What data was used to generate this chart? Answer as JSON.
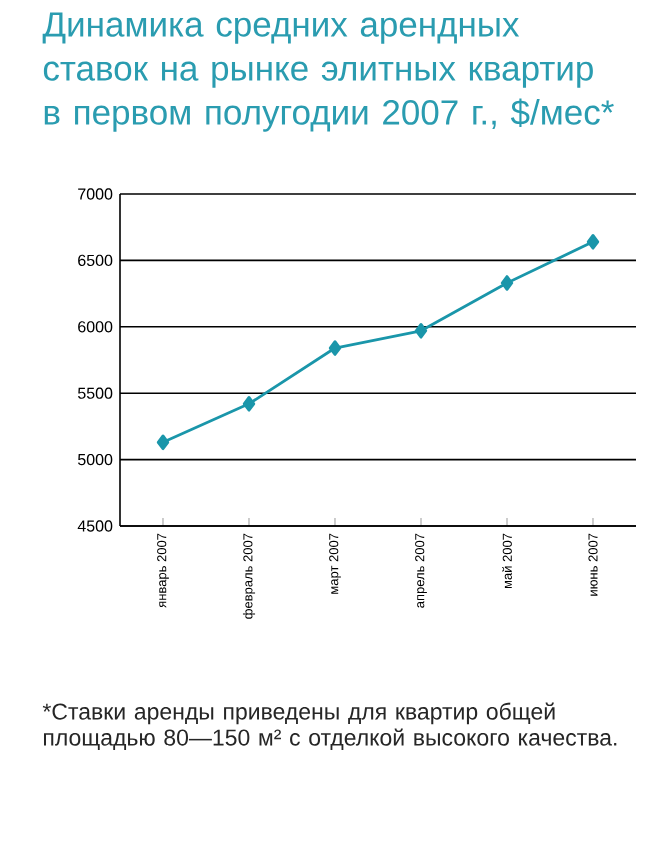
{
  "chart_data": {
    "type": "line",
    "title": "Динамика средних арендных ставок на рынке элитных квартир в первом полугодии 2007 г., $/мес*",
    "categories": [
      "январь 2007",
      "февраль 2007",
      "март 2007",
      "апрель 2007",
      "май 2007",
      "июнь 2007"
    ],
    "series": [
      {
        "color": "#1a96aa",
        "values": [
          5130,
          5420,
          5840,
          5970,
          6330,
          6640
        ]
      }
    ],
    "ylim": [
      4500,
      7000
    ],
    "yticks": [
      4500,
      5000,
      5500,
      6000,
      6500,
      7000
    ],
    "grid": "y",
    "marker": "diamond",
    "line_style": "solid",
    "annotations": [
      "*Ставки аренды приведены для квартир общей площадью 80—150 м² с отделкой высокого качества."
    ]
  }
}
